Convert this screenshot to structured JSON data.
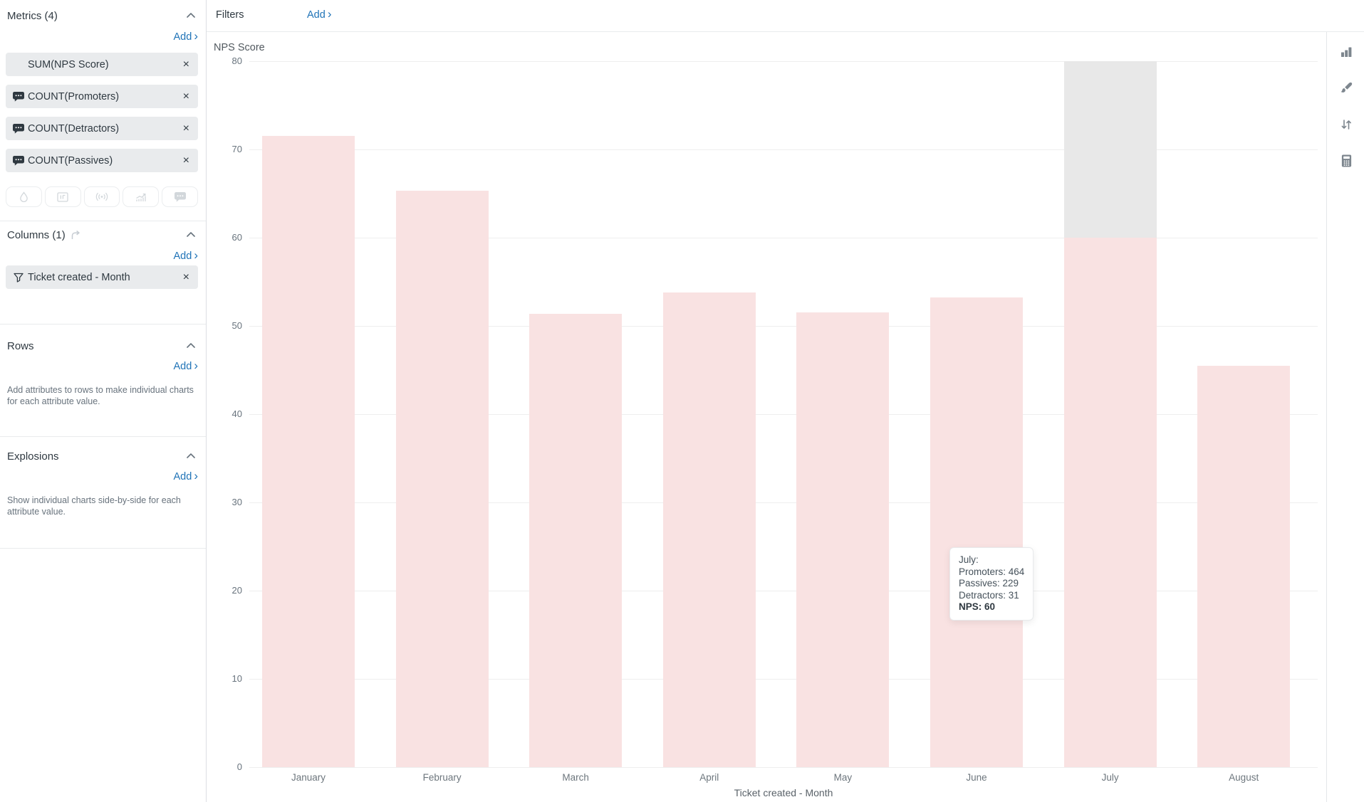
{
  "sidebar": {
    "metrics": {
      "title": "Metrics (4)",
      "add_label": "Add",
      "chips": [
        {
          "label": "SUM(NPS Score)",
          "icon": "none",
          "close": "×"
        },
        {
          "label": "COUNT(Promoters)",
          "icon": "speech-bubble-icon",
          "close": "×"
        },
        {
          "label": "COUNT(Detractors)",
          "icon": "speech-bubble-icon",
          "close": "×"
        },
        {
          "label": "COUNT(Passives)",
          "icon": "speech-bubble-icon",
          "close": "×"
        }
      ],
      "format_buttons": [
        "droplet-icon",
        "text-field-icon",
        "broadcast-icon",
        "trend-line-icon",
        "speech-bubble-icon"
      ]
    },
    "columns": {
      "title": "Columns (1)",
      "add_label": "Add",
      "chips": [
        {
          "label": "Ticket created - Month",
          "icon": "funnel-icon",
          "close": "×"
        }
      ]
    },
    "rows": {
      "title": "Rows",
      "add_label": "Add",
      "help": "Add attributes to rows to make individual charts for each attribute value."
    },
    "explosions": {
      "title": "Explosions",
      "add_label": "Add",
      "help": "Show individual charts side-by-side for each attribute value."
    }
  },
  "filters": {
    "label": "Filters",
    "add_label": "Add"
  },
  "toolbar_icons": [
    "bar-chart-icon",
    "paint-brush-icon",
    "sort-arrows-icon",
    "calculator-icon"
  ],
  "tooltip": {
    "lines": [
      "July:",
      "Promoters: 464",
      "Passives: 229",
      "Detractors: 31"
    ],
    "bold_line": "NPS: 60"
  },
  "chart_data": {
    "type": "bar",
    "title": "NPS Score",
    "xlabel": "Ticket created - Month",
    "ylabel": "NPS Score",
    "categories": [
      "January",
      "February",
      "March",
      "April",
      "May",
      "June",
      "July",
      "August"
    ],
    "values": [
      71.5,
      65.3,
      51.4,
      53.8,
      51.5,
      53.2,
      60,
      45.5
    ],
    "ylim": [
      0,
      80
    ],
    "ytick_step": 10,
    "grid": true,
    "legend": "none",
    "highlighted_category": "July",
    "bar_color": "#f9e2e2",
    "highlight_color": "#e8e8e8"
  },
  "colors": {
    "accent_blue": "#1f73b7",
    "text_dark": "#2f3941",
    "text_muted": "#68737d",
    "chip_bg": "#e9ebed",
    "gridline": "#eeeeee"
  }
}
